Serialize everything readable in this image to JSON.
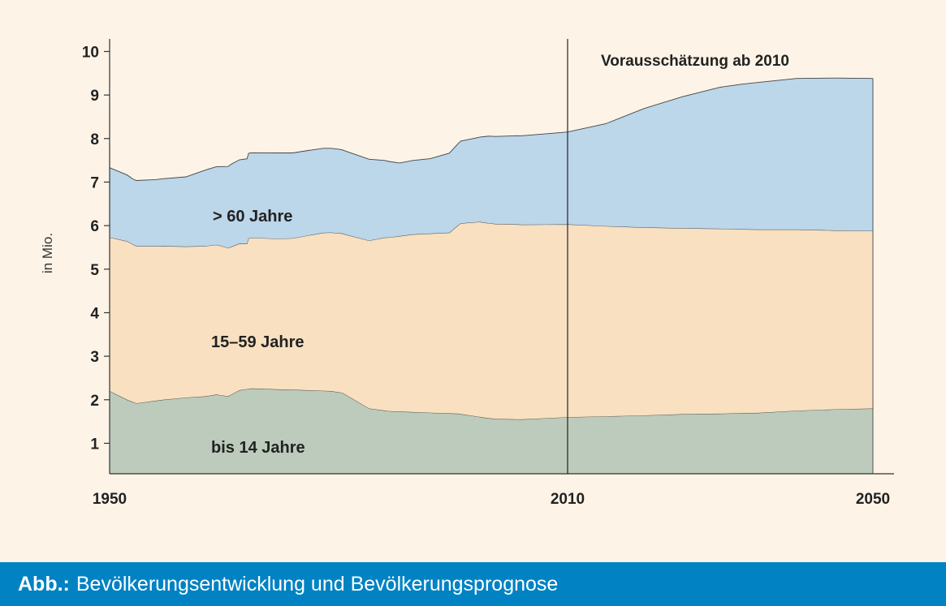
{
  "caption": {
    "prefix": "Abb.:",
    "text": "Bevölkerungsentwicklung und Bevölkerungsprognose"
  },
  "chart_data": {
    "type": "area",
    "stacked": true,
    "ylabel": "in Mio.",
    "xlabel": "",
    "ylim": [
      0.3,
      10.4
    ],
    "xlim": [
      1950,
      2050
    ],
    "yticks": [
      1,
      2,
      3,
      4,
      5,
      6,
      7,
      8,
      9,
      10
    ],
    "xticks": [
      1950,
      2010,
      2050
    ],
    "annotation": {
      "text": "Vorausschätzung ab 2010",
      "x": 2010
    },
    "colors": {
      "bis_14": "#bccbbb",
      "15_59": "#f8e0c0",
      "over_60": "#bcd6ea",
      "line": "#444444"
    },
    "series": [
      {
        "name": "bis 14 Jahre",
        "key": "bis_14",
        "x": [
          1950,
          1952.3,
          1953.5,
          1957,
          1960,
          1962.6,
          1964,
          1965.5,
          1967,
          1968.6,
          1972,
          1976,
          1979,
          1980.5,
          1984,
          1986.6,
          1988,
          1995.7,
          1999.5,
          2000.6,
          2004,
          2010,
          2015,
          2020,
          2025,
          2030,
          2035,
          2040,
          2045,
          2050
        ],
        "values": [
          1.9,
          1.7,
          1.62,
          1.7,
          1.75,
          1.78,
          1.82,
          1.78,
          1.92,
          1.96,
          1.94,
          1.92,
          1.9,
          1.86,
          1.5,
          1.44,
          1.43,
          1.38,
          1.28,
          1.26,
          1.25,
          1.3,
          1.32,
          1.34,
          1.37,
          1.38,
          1.4,
          1.45,
          1.48,
          1.5
        ]
      },
      {
        "name": "15–59 Jahre",
        "key": "15_59",
        "x": [
          1950,
          1952.3,
          1956,
          1960,
          1964.2,
          1968,
          1968.2,
          1972,
          1974,
          1978,
          1980.6,
          1986,
          1989.7,
          1994.5,
          1996,
          1998.5,
          2003,
          2010,
          2015,
          2020,
          2025,
          2030,
          2035,
          2040,
          2045,
          2050
        ],
        "values": [
          3.53,
          3.64,
          3.55,
          3.47,
          3.44,
          3.34,
          3.46,
          3.46,
          3.48,
          3.63,
          3.66,
          3.97,
          4.08,
          4.15,
          4.38,
          4.48,
          4.48,
          4.43,
          4.37,
          4.32,
          4.27,
          4.25,
          4.21,
          4.16,
          4.11,
          4.08
        ]
      },
      {
        "name": "> 60 Jahre",
        "key": "over_60",
        "x": [
          1950,
          1953,
          1956,
          1960,
          1962.6,
          1964.2,
          1966,
          1968,
          1972,
          1976,
          1980,
          1984,
          1988,
          1992,
          1996,
          1998.3,
          1999.7,
          2003,
          2007,
          2010,
          2015,
          2020,
          2025,
          2030,
          2032.8,
          2035,
          2040,
          2045,
          2050
        ],
        "values": [
          1.6,
          1.5,
          1.53,
          1.6,
          1.75,
          1.8,
          1.9,
          1.95,
          1.97,
          1.95,
          1.93,
          1.87,
          1.68,
          1.72,
          1.89,
          1.94,
          2.0,
          2.03,
          2.08,
          2.12,
          2.35,
          2.73,
          3.02,
          3.25,
          3.33,
          3.38,
          3.47,
          3.5,
          3.5
        ]
      }
    ]
  }
}
